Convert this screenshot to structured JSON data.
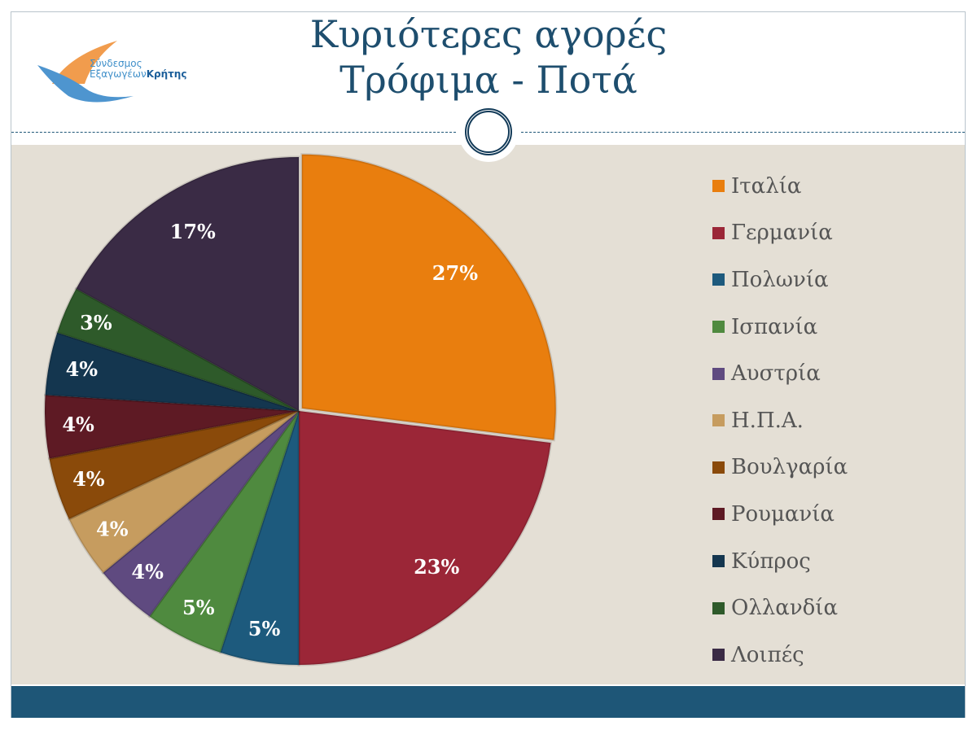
{
  "title": {
    "line1": "Κυριότερες αγορές",
    "line2": "Τρόφιμα - Ποτά"
  },
  "logo": {
    "line1": "Σύνδεσμος",
    "line2a": "Εξαγωγέων",
    "line2b": "Κρήτης"
  },
  "chart_data": {
    "type": "pie",
    "title": "Κυριότερες αγορές Τρόφιμα - Ποτά",
    "start": "top, clockwise",
    "legend_position": "right",
    "slices": [
      {
        "label": "Ιταλία",
        "value": 27,
        "display": "27%",
        "color": "#E97E0E"
      },
      {
        "label": "Γερμανία",
        "value": 23,
        "display": "23%",
        "color": "#9B2637"
      },
      {
        "label": "Πολωνία",
        "value": 5,
        "display": "5%",
        "color": "#1D5A7D"
      },
      {
        "label": "Ισπανία",
        "value": 5,
        "display": "5%",
        "color": "#4F8A3F"
      },
      {
        "label": "Αυστρία",
        "value": 4,
        "display": "4%",
        "color": "#5F4A80"
      },
      {
        "label": "Η.Π.Α.",
        "value": 4,
        "display": "4%",
        "color": "#C69C5F"
      },
      {
        "label": "Βουλγαρία",
        "value": 4,
        "display": "4%",
        "color": "#8A4A0A"
      },
      {
        "label": "Ρουμανία",
        "value": 4,
        "display": "4%",
        "color": "#5E1A24"
      },
      {
        "label": "Κύπρος",
        "value": 4,
        "display": "4%",
        "color": "#14364F"
      },
      {
        "label": "Ολλανδία",
        "value": 3,
        "display": "3%",
        "color": "#2E5A2A"
      },
      {
        "label": "Λοιπές",
        "value": 17,
        "display": "17%",
        "color": "#3A2B45"
      }
    ]
  }
}
